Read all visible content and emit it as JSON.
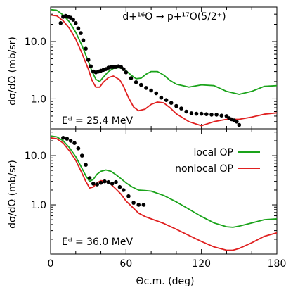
{
  "chart_data": [
    {
      "type": "line",
      "panel": "top",
      "title": "d+¹⁶O → p+¹⁷O(5/2⁺)",
      "annotation": "Eᵈ = 25.4 MeV",
      "ylabel": "dσ/dΩ  (mb/sr)",
      "yscale": "log",
      "xlim": [
        0,
        180
      ],
      "ylim": [
        0.3,
        40
      ],
      "ytick_labels": [
        "1.0",
        "10.0"
      ],
      "yticks": [
        1,
        10
      ],
      "series": [
        {
          "name": "local OP",
          "color": "#1aa31a",
          "x": [
            0,
            5,
            10,
            15,
            20,
            25,
            30,
            33,
            36,
            39,
            42,
            46,
            50,
            55,
            60,
            64,
            68,
            72,
            76,
            80,
            85,
            90,
            95,
            100,
            110,
            120,
            130,
            140,
            150,
            160,
            170,
            180
          ],
          "y": [
            36,
            35,
            29,
            22,
            14.5,
            8.5,
            4.5,
            3.0,
            2.2,
            2.0,
            2.4,
            3.0,
            3.4,
            3.5,
            3.1,
            2.6,
            2.25,
            2.3,
            2.7,
            3.0,
            3.0,
            2.6,
            2.1,
            1.8,
            1.6,
            1.75,
            1.7,
            1.35,
            1.2,
            1.35,
            1.65,
            1.7
          ]
        },
        {
          "name": "nonlocal OP",
          "color": "#e02020",
          "x": [
            0,
            5,
            10,
            15,
            20,
            25,
            30,
            33,
            36,
            39,
            42,
            46,
            50,
            55,
            58,
            62,
            66,
            70,
            75,
            80,
            85,
            90,
            95,
            100,
            110,
            120,
            130,
            140,
            150,
            160,
            170,
            180
          ],
          "y": [
            29,
            28,
            23,
            17,
            11,
            6.2,
            3.3,
            2.1,
            1.6,
            1.6,
            1.95,
            2.35,
            2.5,
            2.15,
            1.65,
            1.05,
            0.72,
            0.62,
            0.66,
            0.8,
            0.88,
            0.85,
            0.7,
            0.55,
            0.4,
            0.34,
            0.4,
            0.44,
            0.44,
            0.48,
            0.54,
            0.57
          ]
        }
      ],
      "experimental_points": {
        "x": [
          8,
          10,
          12,
          14,
          16,
          18,
          20,
          22,
          24,
          26,
          28,
          30,
          32,
          34,
          36,
          38,
          40,
          42,
          44,
          46,
          48,
          50,
          52,
          54,
          56,
          58,
          60,
          64,
          68,
          72,
          76,
          80,
          84,
          88,
          92,
          96,
          100,
          104,
          108,
          112,
          116,
          120,
          124,
          128,
          132,
          136,
          140,
          142,
          144,
          146,
          148,
          150
        ],
        "y": [
          21,
          27,
          28,
          27,
          26,
          24,
          21,
          17,
          14,
          10.5,
          7.5,
          4.8,
          3.7,
          3.0,
          2.9,
          3.0,
          3.1,
          3.2,
          3.3,
          3.5,
          3.6,
          3.6,
          3.6,
          3.7,
          3.6,
          3.3,
          2.9,
          2.3,
          1.95,
          1.75,
          1.55,
          1.4,
          1.25,
          1.05,
          0.95,
          0.85,
          0.75,
          0.68,
          0.6,
          0.56,
          0.55,
          0.55,
          0.54,
          0.53,
          0.53,
          0.51,
          0.5,
          0.46,
          0.44,
          0.42,
          0.4,
          0.35
        ]
      }
    },
    {
      "type": "line",
      "panel": "bottom",
      "annotation": "Eᵈ = 36.0 MeV",
      "ylabel": "dσ/dΩ  (mb/sr)",
      "xlabel": "Θc.m.  (deg)",
      "yscale": "log",
      "xlim": [
        0,
        180
      ],
      "ylim": [
        0.1,
        35
      ],
      "xticks": [
        0,
        60,
        120,
        180
      ],
      "xtick_labels": [
        "0",
        "60",
        "120",
        "180"
      ],
      "yticks": [
        1,
        10
      ],
      "ytick_labels": [
        "1.0",
        "10.0"
      ],
      "legend_position": "center-right",
      "series": [
        {
          "name": "local OP",
          "color": "#1aa31a",
          "x": [
            0,
            5,
            10,
            15,
            20,
            25,
            28,
            31,
            34,
            37,
            40,
            44,
            48,
            52,
            56,
            60,
            65,
            70,
            75,
            80,
            90,
            100,
            110,
            120,
            130,
            140,
            145,
            150,
            160,
            170,
            180
          ],
          "y": [
            25,
            24,
            20,
            14.5,
            9.5,
            5.5,
            3.9,
            3.0,
            3.3,
            4.2,
            4.8,
            5.1,
            4.8,
            4.1,
            3.4,
            2.8,
            2.3,
            2.0,
            1.95,
            1.9,
            1.55,
            1.15,
            0.82,
            0.58,
            0.43,
            0.36,
            0.35,
            0.37,
            0.43,
            0.5,
            0.52
          ]
        },
        {
          "name": "nonlocal OP",
          "color": "#e02020",
          "x": [
            0,
            5,
            10,
            15,
            20,
            25,
            28,
            31,
            34,
            37,
            40,
            44,
            48,
            52,
            56,
            60,
            65,
            70,
            75,
            80,
            90,
            100,
            110,
            120,
            130,
            140,
            145,
            150,
            160,
            170,
            180
          ],
          "y": [
            23,
            22,
            18,
            12.5,
            8.0,
            4.4,
            3.0,
            2.2,
            2.3,
            2.8,
            3.1,
            3.0,
            2.6,
            2.1,
            1.65,
            1.2,
            0.9,
            0.68,
            0.58,
            0.52,
            0.42,
            0.32,
            0.24,
            0.18,
            0.14,
            0.12,
            0.12,
            0.13,
            0.17,
            0.23,
            0.27
          ]
        }
      ],
      "experimental_points": {
        "x": [
          10,
          13,
          16,
          19,
          22,
          25,
          28,
          31,
          34,
          37,
          40,
          43,
          46,
          49,
          52,
          55,
          58,
          62,
          66,
          70,
          74
        ],
        "y": [
          23,
          22,
          20,
          18,
          14,
          10,
          6.5,
          3.5,
          2.7,
          2.6,
          2.8,
          3.0,
          2.9,
          2.7,
          2.9,
          2.3,
          2.0,
          1.5,
          1.1,
          1.0,
          1.0
        ]
      }
    }
  ]
}
